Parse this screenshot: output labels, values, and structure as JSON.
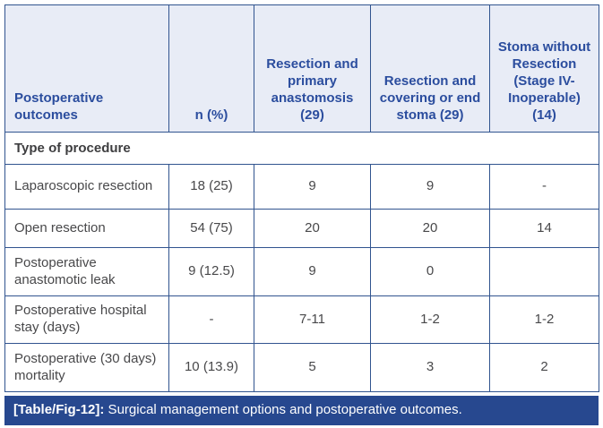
{
  "colors": {
    "border": "#31548f",
    "header_bg": "#e8ecf6",
    "header_text": "#2b4d9e",
    "body_text": "#48484a",
    "caption_bg": "#27488f",
    "caption_text": "#ffffff",
    "page_bg": "#ffffff"
  },
  "table": {
    "columns": [
      {
        "label": "Postoperative outcomes"
      },
      {
        "label": "n (%)"
      },
      {
        "label": "Resection and primary anastomosis (29)"
      },
      {
        "label": "Resection and covering or end stoma (29)"
      },
      {
        "label": "Stoma without Resection (Stage IV-Inoperable) (14)"
      }
    ],
    "section_header": "Type of procedure",
    "rows": [
      {
        "cells": [
          "Laparoscopic resection",
          "18 (25)",
          "9",
          "9",
          "-"
        ]
      },
      {
        "cells": [
          "Open resection",
          "54 (75)",
          "20",
          "20",
          "14"
        ]
      },
      {
        "cells": [
          "Postoperative anastomotic leak",
          "9 (12.5)",
          "9",
          "0",
          ""
        ]
      },
      {
        "cells": [
          "Postoperative hospital stay (days)",
          "-",
          "7-11",
          "1-2",
          "1-2"
        ]
      },
      {
        "cells": [
          "Postoperative (30 days) mortality",
          "10 (13.9)",
          "5",
          "3",
          "2"
        ]
      }
    ]
  },
  "caption": {
    "label": "[Table/Fig-12]:",
    "text": " Surgical management options and postoperative outcomes."
  }
}
